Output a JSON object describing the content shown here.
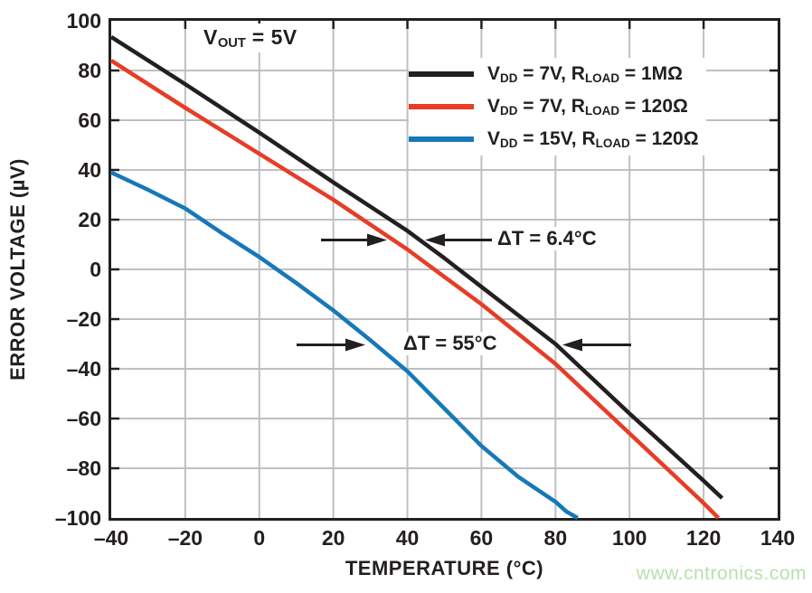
{
  "figure": {
    "watermark": "www.cntronics.com"
  },
  "chart_data": {
    "type": "line",
    "title": "",
    "condition_label": "V~OUT~ = 5V",
    "xlabel": "TEMPERATURE (°C)",
    "ylabel": "ERROR VOLTAGE (µV)",
    "xlim": [
      -40,
      140
    ],
    "ylim": [
      -100,
      100
    ],
    "x_ticks": [
      -40,
      -20,
      0,
      20,
      40,
      60,
      80,
      100,
      120,
      140
    ],
    "x_tick_labels": [
      "–40",
      "–20",
      "0",
      "20",
      "40",
      "60",
      "80",
      "100",
      "120",
      "140"
    ],
    "y_ticks": [
      100,
      80,
      60,
      40,
      20,
      0,
      -20,
      -40,
      -60,
      -80,
      -100
    ],
    "y_tick_labels": [
      "100",
      "80",
      "60",
      "40",
      "20",
      "0",
      "–20",
      "–40",
      "–60",
      "–80",
      "–100"
    ],
    "grid": true,
    "grid_color": "#bdbfc1",
    "frame_color": "#231f20",
    "legend_position": "top-right-inside",
    "series": [
      {
        "name": "VDD = 7V, RLOAD = 1MOhm",
        "label_rich": "V~DD~ = 7V, R~LOAD~ = 1MΩ",
        "color": "#231f20",
        "x": [
          -40,
          -20,
          0,
          20,
          40,
          50,
          60,
          70,
          80,
          90,
          100,
          110,
          120,
          125
        ],
        "y": [
          93.5,
          74.5,
          55,
          35,
          15.5,
          4.5,
          -7,
          -18.5,
          -30,
          -44,
          -58,
          -71.5,
          -85,
          -92
        ]
      },
      {
        "name": "VDD = 7V, RLOAD = 120Ohm",
        "label_rich": "V~DD~ = 7V, R~LOAD~ = 120Ω",
        "color": "#e73c26",
        "x": [
          -40,
          -20,
          0,
          20,
          40,
          50,
          60,
          70,
          80,
          90,
          100,
          110,
          120,
          124
        ],
        "y": [
          84,
          65,
          46.5,
          28,
          8,
          -3,
          -14,
          -26,
          -38,
          -52,
          -66,
          -80,
          -94,
          -100
        ]
      },
      {
        "name": "VDD = 15V, RLOAD = 120Ohm",
        "label_rich": "V~DD~ = 15V, R~LOAD~ = 120Ω",
        "color": "#1778b9",
        "x": [
          -40,
          -30,
          -20,
          -10,
          0,
          10,
          20,
          30,
          40,
          50,
          60,
          70,
          80,
          83,
          86
        ],
        "y": [
          39,
          32,
          24.5,
          14.5,
          5,
          -5.5,
          -16.5,
          -28.5,
          -41,
          -56,
          -71,
          -83.5,
          -93.5,
          -97.5,
          -100
        ]
      }
    ],
    "annotations": [
      {
        "text": "ΔT = 6.4°C",
        "y_level_uV": 12
      },
      {
        "text": "ΔT = 55°C",
        "y_level_uV": -31
      }
    ]
  }
}
